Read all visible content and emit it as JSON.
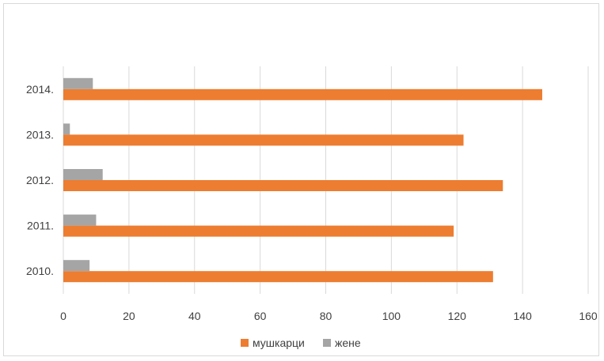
{
  "chart_data": {
    "type": "bar",
    "orientation": "horizontal",
    "categories": [
      "2010.",
      "2011.",
      "2012.",
      "2013.",
      "2014."
    ],
    "series": [
      {
        "name": "мушкарци",
        "values": [
          131,
          119,
          134,
          122,
          146
        ],
        "color": "#ED7D31"
      },
      {
        "name": "жене",
        "values": [
          8,
          10,
          12,
          2,
          9
        ],
        "color": "#A5A5A5"
      }
    ],
    "xlim": [
      0,
      160
    ],
    "xticks": [
      "0",
      "20",
      "40",
      "60",
      "80",
      "100",
      "120",
      "140",
      "160"
    ],
    "grid": true,
    "legend": "bottom"
  }
}
